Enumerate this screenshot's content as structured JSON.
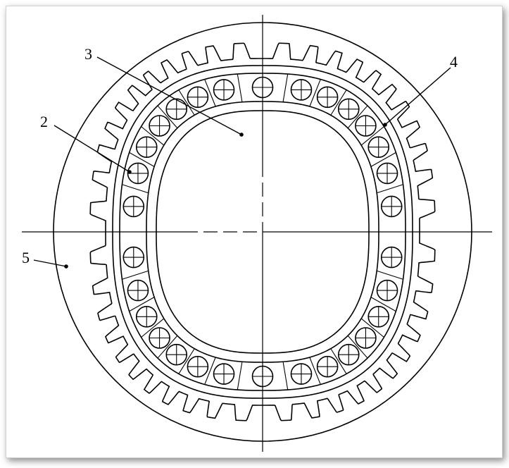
{
  "figure": {
    "labels": [
      {
        "id": "1",
        "text": "2"
      },
      {
        "id": "2",
        "text": "3"
      },
      {
        "id": "3",
        "text": "4"
      },
      {
        "id": "4",
        "text": "5"
      }
    ],
    "teeth_count": 44,
    "ball_count": 30,
    "stroke_color": "#000000"
  }
}
